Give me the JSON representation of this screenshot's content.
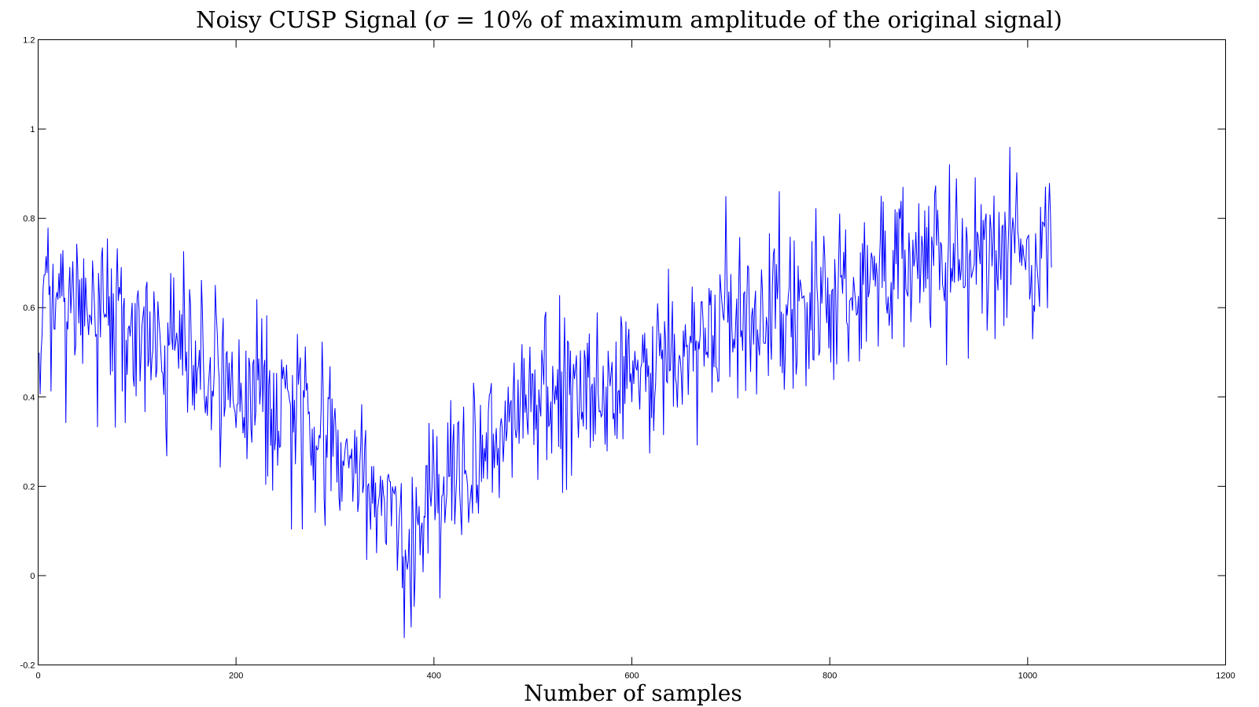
{
  "chart_data": {
    "type": "line",
    "title_prefix": "Noisy CUSP Signal (",
    "title_sigma": "σ",
    "title_suffix": " = 10% of maximum amplitude of the original signal)",
    "xlabel": "Number of samples",
    "ylabel": "",
    "xlim": [
      0,
      1200
    ],
    "ylim": [
      -0.2,
      1.2
    ],
    "xticks": [
      0,
      200,
      400,
      600,
      800,
      1000,
      1200
    ],
    "xtick_labels": [
      "0",
      "200",
      "400",
      "600",
      "800",
      "1000",
      "1200"
    ],
    "yticks": [
      -0.2,
      0,
      0.2,
      0.4,
      0.6,
      0.8,
      1,
      1.2
    ],
    "ytick_labels": [
      "-0.2",
      "0",
      "0.2",
      "0.4",
      "0.6",
      "0.8",
      "1",
      "1.2"
    ],
    "grid": false,
    "series": [
      {
        "color": "#0000ff",
        "n_samples": 1024,
        "x_start": 1,
        "envelope_x": [
          1,
          10,
          25,
          60,
          100,
          150,
          200,
          250,
          300,
          340,
          375,
          400,
          450,
          500,
          550,
          600,
          650,
          700,
          750,
          800,
          850,
          900,
          950,
          1000,
          1024
        ],
        "envelope_y": [
          0.57,
          0.6,
          0.62,
          0.61,
          0.53,
          0.47,
          0.42,
          0.37,
          0.3,
          0.19,
          0.04,
          0.18,
          0.3,
          0.4,
          0.42,
          0.44,
          0.51,
          0.56,
          0.59,
          0.62,
          0.66,
          0.7,
          0.73,
          0.74,
          0.75
        ],
        "noise_sigma": 0.09,
        "noise_seed": 20231,
        "last_value": 0.69
      }
    ]
  }
}
